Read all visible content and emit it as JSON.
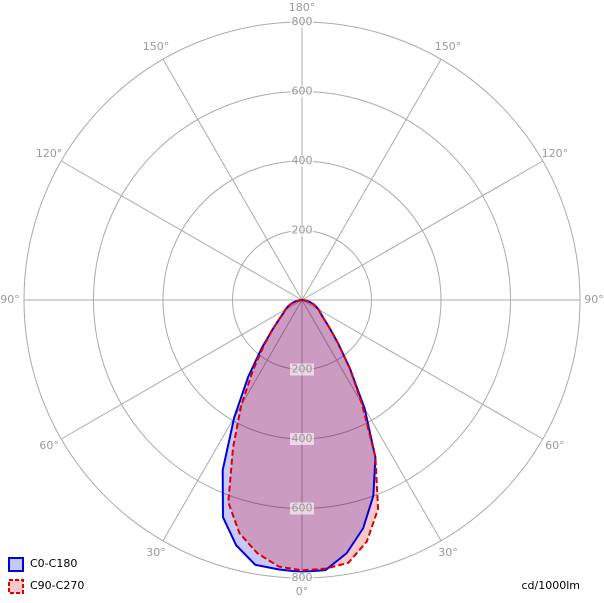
{
  "chart_data": {
    "type": "polar",
    "unit_label": "cd/1000lm",
    "rlim": [
      0,
      800
    ],
    "rticks": [
      200,
      400,
      600,
      800
    ],
    "angle_ticks": [
      {
        "value": 0,
        "label": "0°"
      },
      {
        "value": 30,
        "label": "30°"
      },
      {
        "value": -30,
        "label": "30°"
      },
      {
        "value": 60,
        "label": "60°"
      },
      {
        "value": -60,
        "label": "60°"
      },
      {
        "value": 90,
        "label": "90°"
      },
      {
        "value": -90,
        "label": "90°"
      },
      {
        "value": 120,
        "label": "120°"
      },
      {
        "value": -120,
        "label": "120°"
      },
      {
        "value": 150,
        "label": "150°"
      },
      {
        "value": -150,
        "label": "150°"
      },
      {
        "value": 180,
        "label": "180°"
      }
    ],
    "x": [
      -90,
      -85,
      -80,
      -75,
      -70,
      -65,
      -60,
      -55,
      -50,
      -45,
      -40,
      -35,
      -30,
      -25,
      -20,
      -15,
      -10,
      -5,
      0,
      5,
      10,
      15,
      20,
      25,
      30,
      35,
      40,
      45,
      50,
      55,
      60,
      65,
      70,
      75,
      80,
      85,
      90
    ],
    "series": [
      {
        "name": "C0-C180",
        "color": "#0000dd",
        "dashed": false,
        "values": [
          0,
          8,
          15,
          25,
          35,
          45,
          55,
          65,
          85,
          120,
          180,
          270,
          390,
          540,
          665,
          731,
          774,
          778,
          783,
          780,
          740,
          680,
          600,
          500,
          360,
          240,
          160,
          110,
          80,
          65,
          55,
          45,
          35,
          25,
          15,
          8,
          0
        ]
      },
      {
        "name": "C90-C270",
        "color": "#dd0000",
        "dashed": true,
        "values": [
          0,
          8,
          15,
          25,
          35,
          45,
          55,
          65,
          85,
          120,
          170,
          245,
          350,
          470,
          620,
          695,
          740,
          770,
          778,
          776,
          768,
          720,
          640,
          500,
          345,
          240,
          160,
          110,
          80,
          65,
          55,
          45,
          35,
          25,
          15,
          8,
          0
        ]
      }
    ]
  }
}
